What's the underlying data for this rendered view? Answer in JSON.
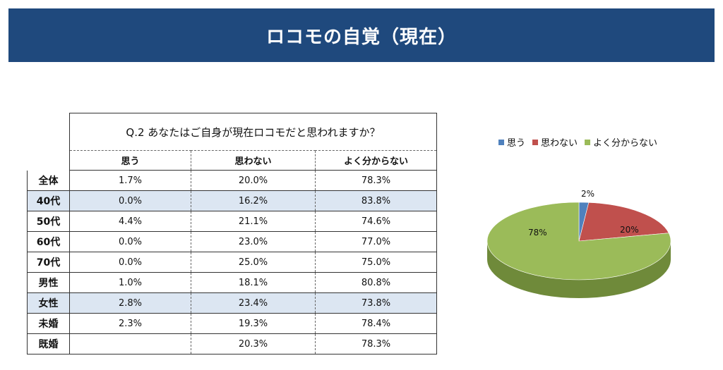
{
  "header": {
    "title": "ロコモの自覚（現在）"
  },
  "table": {
    "question": "Q.2  あなたはご自身が現在ロコモだと思われますか？",
    "columns": [
      "思う",
      "思わない",
      "よく分からない"
    ],
    "rows": [
      {
        "label": "全体",
        "values": [
          "1.7%",
          "20.0%",
          "78.3%"
        ],
        "highlight": false
      },
      {
        "label": "40代",
        "values": [
          "0.0%",
          "16.2%",
          "83.8%"
        ],
        "highlight": true
      },
      {
        "label": "50代",
        "values": [
          "4.4%",
          "21.1%",
          "74.6%"
        ],
        "highlight": false
      },
      {
        "label": "60代",
        "values": [
          "0.0%",
          "23.0%",
          "77.0%"
        ],
        "highlight": false
      },
      {
        "label": "70代",
        "values": [
          "0.0%",
          "25.0%",
          "75.0%"
        ],
        "highlight": false
      },
      {
        "label": "男性",
        "values": [
          "1.0%",
          "18.1%",
          "80.8%"
        ],
        "highlight": false
      },
      {
        "label": "女性",
        "values": [
          "2.8%",
          "23.4%",
          "73.8%"
        ],
        "highlight": true
      },
      {
        "label": "未婚",
        "values": [
          "2.3%",
          "19.3%",
          "78.4%"
        ],
        "highlight": false
      },
      {
        "label": "既婚",
        "values": [
          "",
          "20.3%",
          "78.3%"
        ],
        "highlight": false
      }
    ]
  },
  "chart_data": {
    "type": "pie",
    "labels": [
      "思う",
      "思わない",
      "よく分からない"
    ],
    "values": [
      1.7,
      20.0,
      78.3
    ],
    "data_labels": [
      "2%",
      "20%",
      "78%"
    ],
    "colors": [
      "#4f81bd",
      "#c0504d",
      "#9bbb59"
    ],
    "side_colors": [
      "#2e5a8c",
      "#8e3230",
      "#6f8a3a"
    ],
    "legend_position": "top",
    "style": "3d"
  }
}
